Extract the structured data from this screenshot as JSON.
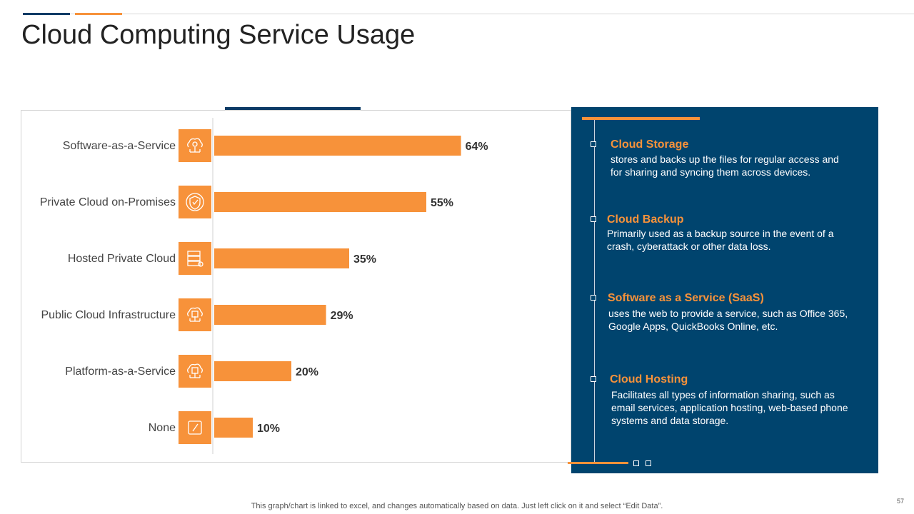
{
  "title": "Cloud Computing Service Usage",
  "colors": {
    "bar": "#f7923a",
    "icon_bg": "#f7923a",
    "panel": "#00446e",
    "accent_blue": "#0d3b66"
  },
  "chart_data": {
    "type": "bar",
    "orientation": "horizontal",
    "categories": [
      "Software-as-a-Service",
      "Private Cloud on-Promises",
      "Hosted Private Cloud",
      "Public Cloud Infrastructure",
      "Platform-as-a-Service",
      "None"
    ],
    "values": [
      64,
      55,
      35,
      29,
      20,
      10
    ],
    "value_labels": [
      "64%",
      "55%",
      "35%",
      "29%",
      "20%",
      "10%"
    ],
    "icons": [
      "cloud-gear-icon",
      "shield-check-icon",
      "server-rack-icon",
      "cloud-network-icon",
      "cloud-chip-icon",
      "edit-icon"
    ],
    "unit": "%",
    "xlim": [
      0,
      100
    ],
    "grid": false,
    "legend": "none"
  },
  "panel": {
    "items": [
      {
        "title": "Cloud Storage",
        "desc": "stores and backs up the files for regular access and for sharing and syncing them across devices."
      },
      {
        "title": "Cloud Backup",
        "desc": "Primarily used as a backup source in the event of a crash, cyberattack or other data loss."
      },
      {
        "title": "Software as a Service (SaaS)",
        "desc": "uses the web to provide  a service, such as Office 365, Google Apps, QuickBooks Online, etc."
      },
      {
        "title": "Cloud Hosting",
        "desc": "Facilitates all types of information sharing, such as email services, application hosting, web-based phone systems and data storage."
      }
    ]
  },
  "footer": "This graph/chart is linked to excel,  and changes automatically based on data. Just left click on it and select “Edit Data”.",
  "page_number": "57"
}
